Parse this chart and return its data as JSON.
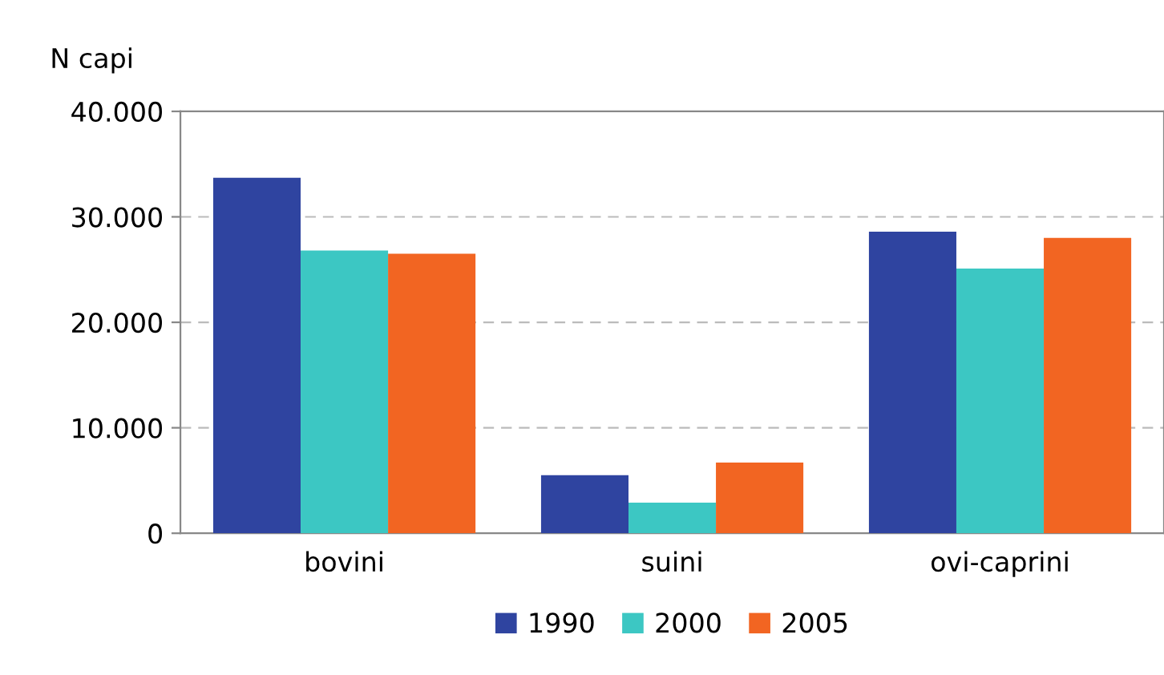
{
  "chart_data": {
    "type": "bar",
    "ylabel": "N capi",
    "categories": [
      "bovini",
      "suini",
      "ovi-caprini"
    ],
    "series": [
      {
        "name": "1990",
        "color": "#2f44a0",
        "values": [
          33700,
          5500,
          28600
        ]
      },
      {
        "name": "2000",
        "color": "#3cc7c3",
        "values": [
          26800,
          2900,
          25100
        ]
      },
      {
        "name": "2005",
        "color": "#f26522",
        "values": [
          26500,
          6700,
          28000
        ]
      }
    ],
    "ylim": [
      0,
      40000
    ],
    "yticks": [
      0,
      {
        "value": 10000,
        "label": "10.000"
      },
      {
        "value": 20000,
        "label": "20.000"
      },
      {
        "value": 30000,
        "label": "30.000"
      },
      {
        "value": 40000,
        "label": "40.000"
      }
    ],
    "grid": "y",
    "legend": "bottom"
  }
}
